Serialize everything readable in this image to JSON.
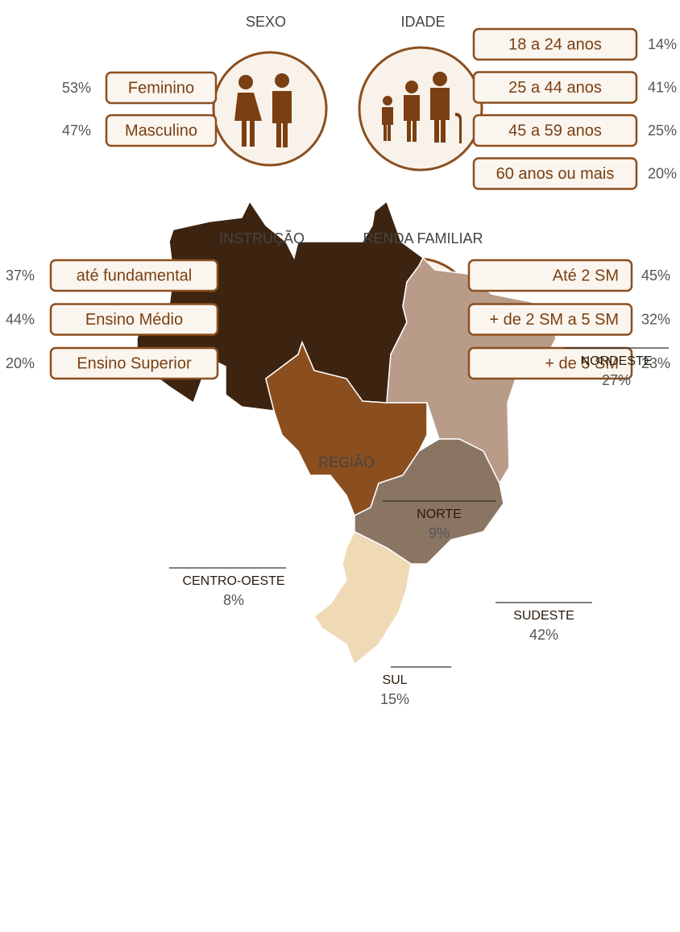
{
  "sexo": {
    "title": "SEXO",
    "items": [
      {
        "label": "Feminino",
        "value": "53%"
      },
      {
        "label": "Masculino",
        "value": "47%"
      }
    ]
  },
  "idade": {
    "title": "IDADE",
    "items": [
      {
        "label": "18 a 24 anos",
        "value": "14%"
      },
      {
        "label": "25 a 44 anos",
        "value": "41%"
      },
      {
        "label": "45 a 59 anos",
        "value": "25%"
      },
      {
        "label": "60 anos ou mais",
        "value": "20%"
      }
    ]
  },
  "instrucao": {
    "title": "INSTRUÇÃO",
    "items": [
      {
        "label": "até fundamental",
        "value": "37%"
      },
      {
        "label": "Ensino Médio",
        "value": "44%"
      },
      {
        "label": "Ensino Superior",
        "value": "20%"
      }
    ]
  },
  "renda": {
    "title": "RENDA FAMILIAR",
    "items": [
      {
        "label": "Até 2 SM",
        "value": "45%"
      },
      {
        "label": "+ de 2 SM a 5 SM",
        "value": "32%"
      },
      {
        "label": "+ de 5 SM",
        "value": "23%"
      }
    ]
  },
  "regiao": {
    "title": "REGIÃO",
    "regions": [
      {
        "name": "NORTE",
        "value": "9%"
      },
      {
        "name": "NORDESTE",
        "value": "27%"
      },
      {
        "name": "CENTRO-OESTE",
        "value": "8%"
      },
      {
        "name": "SUDESTE",
        "value": "42%"
      },
      {
        "name": "SUL",
        "value": "15%"
      }
    ]
  }
}
